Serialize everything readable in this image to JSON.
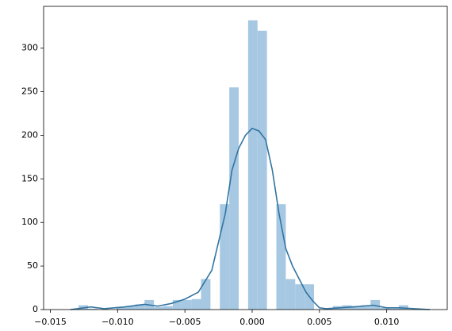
{
  "chart_data": {
    "type": "histogram",
    "bins": [
      -0.0129,
      -0.0122,
      -0.0115,
      -0.0108,
      -0.0101,
      -0.0094,
      -0.0087,
      -0.008,
      -0.0073,
      -0.0066,
      -0.0059,
      -0.0052,
      -0.0045,
      -0.0038,
      -0.0031,
      -0.0024,
      -0.0017,
      -0.001,
      -0.0003,
      0.0004,
      0.0011,
      0.0018,
      0.0025,
      0.0032,
      0.0039,
      0.0046,
      0.0053,
      0.006,
      0.0067,
      0.0074,
      0.0081,
      0.0088,
      0.0095,
      0.0102,
      0.0109,
      0.0116
    ],
    "values": [
      5,
      1,
      0,
      0,
      3,
      4,
      6,
      11,
      3,
      4,
      11,
      11,
      12,
      35,
      0,
      121,
      255,
      0,
      332,
      320,
      0,
      121,
      35,
      29,
      29,
      0,
      1,
      4,
      5,
      4,
      5,
      11,
      2,
      1,
      5
    ],
    "color": "#a6c8e2",
    "kde": {
      "color": "#3274a1",
      "x": [
        -0.0135,
        -0.012,
        -0.011,
        -0.0095,
        -0.008,
        -0.007,
        -0.006,
        -0.005,
        -0.004,
        -0.003,
        -0.002,
        -0.0015,
        -0.001,
        -0.0005,
        0,
        0.0005,
        0.001,
        0.0015,
        0.002,
        0.0025,
        0.003,
        0.0035,
        0.004,
        0.0045,
        0.005,
        0.0055,
        0.0065,
        0.0075,
        0.009,
        0.01,
        0.011,
        0.0132
      ],
      "values": [
        0,
        3,
        1,
        3,
        6,
        4,
        7,
        12,
        20,
        45,
        110,
        160,
        185,
        200,
        208,
        205,
        195,
        160,
        110,
        70,
        50,
        35,
        20,
        10,
        2,
        1,
        2,
        3,
        5,
        2,
        2,
        0
      ]
    },
    "xlim": [
      -0.0155,
      0.0145
    ],
    "ylim": [
      0,
      348
    ],
    "xticks": [
      {
        "value": -0.015,
        "label": "−0.015"
      },
      {
        "value": -0.01,
        "label": "−0.010"
      },
      {
        "value": -0.005,
        "label": "−0.005"
      },
      {
        "value": 0,
        "label": "0.000"
      },
      {
        "value": 0.005,
        "label": "0.005"
      },
      {
        "value": 0.01,
        "label": "0.010"
      }
    ],
    "yticks": [
      0,
      50,
      100,
      150,
      200,
      250,
      300
    ]
  }
}
